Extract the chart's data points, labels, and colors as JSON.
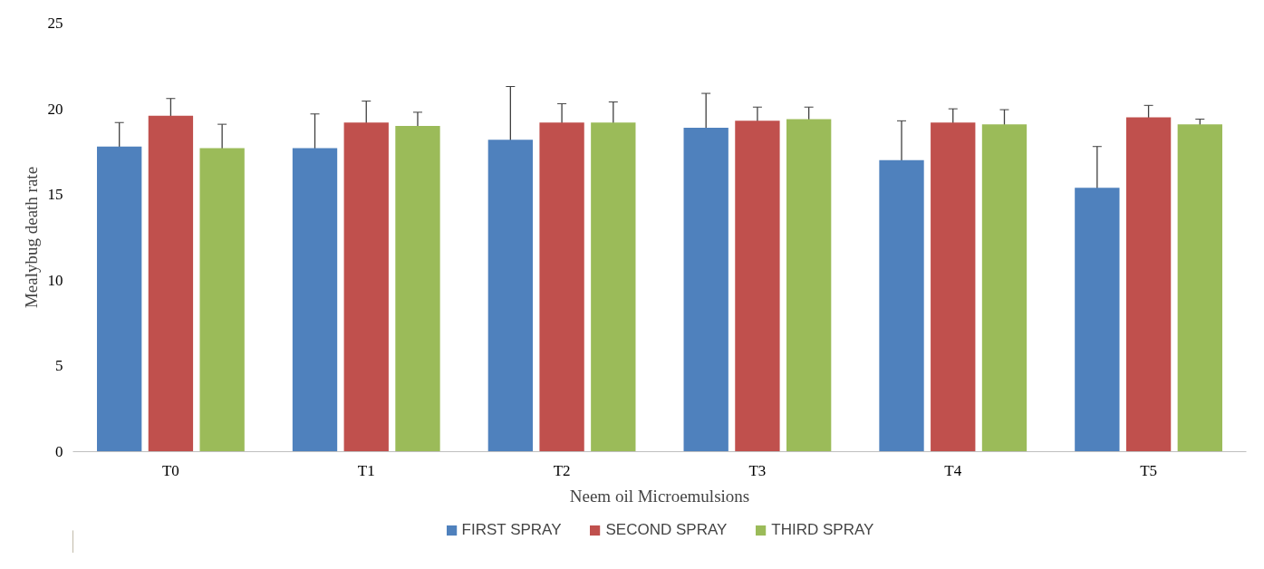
{
  "chart_data": {
    "type": "bar",
    "xlabel": "Neem oil Microemulsions",
    "ylabel": "Mealybug death rate",
    "categories": [
      "T0",
      "T1",
      "T2",
      "T3",
      "T4",
      "T5"
    ],
    "series": [
      {
        "name": "FIRST SPRAY",
        "color": "#4f81bd",
        "values": [
          17.8,
          17.7,
          18.2,
          18.9,
          17.0,
          15.4
        ],
        "errors": [
          1.4,
          2.0,
          3.1,
          2.0,
          2.3,
          2.4
        ]
      },
      {
        "name": "SECOND SPRAY",
        "color": "#c0504d",
        "values": [
          19.6,
          19.2,
          19.2,
          19.3,
          19.2,
          19.5
        ],
        "errors": [
          1.0,
          1.25,
          1.1,
          0.8,
          0.8,
          0.7
        ]
      },
      {
        "name": "THIRD SPRAY",
        "color": "#9bbb59",
        "values": [
          17.7,
          19.0,
          19.2,
          19.4,
          19.1,
          19.1
        ],
        "errors": [
          1.4,
          0.8,
          1.2,
          0.7,
          0.85,
          0.3
        ]
      }
    ],
    "ylim": [
      0,
      25
    ],
    "yticks": [
      0,
      5,
      10,
      15,
      20,
      25
    ],
    "grid": false,
    "legend": "bottom"
  }
}
